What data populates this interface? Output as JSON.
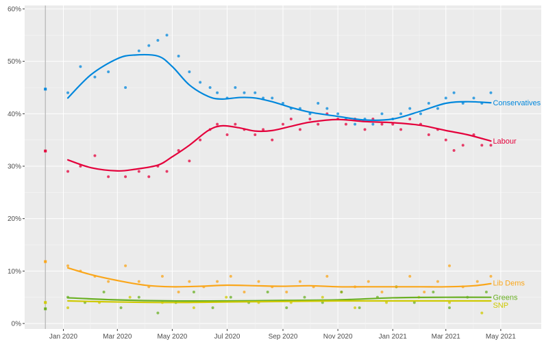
{
  "chart_data": {
    "type": "scatter",
    "x_ticks": [
      "Jan 2020",
      "Mar 2020",
      "May 2020",
      "Jul 2020",
      "Sep 2020",
      "Nov 2020",
      "Jan 2021",
      "Mar 2021",
      "May 2021"
    ],
    "y_ticks": [
      "0%",
      "10%",
      "20%",
      "30%",
      "40%",
      "50%",
      "60%"
    ],
    "ylim": [
      0,
      60
    ],
    "xlim": [
      "2019-11-19",
      "2021-06-15"
    ],
    "grid": true,
    "legend": "direct labels at right end of lines",
    "election_marker": {
      "date": "2019-12-12",
      "results": {
        "Conservatives": 44.7,
        "Labour": 32.9,
        "Lib Dems": 11.8,
        "Greens": 2.8,
        "SNP": 4.0
      }
    },
    "series": [
      {
        "name": "Conservatives",
        "color": "#0087dc",
        "trend_dates": [
          "2020-01-06",
          "2020-02-01",
          "2020-03-01",
          "2020-03-20",
          "2020-04-15",
          "2020-05-01",
          "2020-05-20",
          "2020-06-10",
          "2020-06-25",
          "2020-07-15",
          "2020-08-01",
          "2020-08-20",
          "2020-09-10",
          "2020-10-01",
          "2020-11-01",
          "2020-12-01",
          "2021-01-01",
          "2021-02-01",
          "2021-03-01",
          "2021-03-25",
          "2021-04-20"
        ],
        "trend_values": [
          43.0,
          47.5,
          50.5,
          51.2,
          51.0,
          49.0,
          45.5,
          43.3,
          42.8,
          43.1,
          43.0,
          42.3,
          41.2,
          40.3,
          39.5,
          38.8,
          39.0,
          40.5,
          42.0,
          42.3,
          42.1
        ],
        "poll_dates": [
          "2020-01-06",
          "2020-01-20",
          "2020-02-05",
          "2020-02-20",
          "2020-03-10",
          "2020-03-25",
          "2020-04-05",
          "2020-04-15",
          "2020-04-25",
          "2020-05-08",
          "2020-05-20",
          "2020-06-01",
          "2020-06-12",
          "2020-06-20",
          "2020-07-01",
          "2020-07-10",
          "2020-07-20",
          "2020-08-01",
          "2020-08-10",
          "2020-08-20",
          "2020-09-01",
          "2020-09-10",
          "2020-09-20",
          "2020-10-01",
          "2020-10-10",
          "2020-10-20",
          "2020-11-01",
          "2020-11-10",
          "2020-11-20",
          "2020-12-01",
          "2020-12-10",
          "2020-12-20",
          "2021-01-01",
          "2021-01-10",
          "2021-01-20",
          "2021-02-01",
          "2021-02-10",
          "2021-02-20",
          "2021-03-01",
          "2021-03-10",
          "2021-03-20",
          "2021-04-01",
          "2021-04-10",
          "2021-04-20"
        ],
        "poll_values": [
          44,
          49,
          47,
          48,
          45,
          52,
          53,
          54,
          55,
          51,
          48,
          46,
          45,
          44,
          43,
          45,
          44,
          44,
          43,
          43,
          42,
          41,
          41,
          40,
          42,
          41,
          40,
          39,
          38,
          39,
          38,
          40,
          39,
          40,
          41,
          40,
          42,
          41,
          43,
          44,
          42,
          43,
          42,
          44
        ]
      },
      {
        "name": "Labour",
        "color": "#e4003b",
        "trend_dates": [
          "2020-01-06",
          "2020-02-01",
          "2020-03-01",
          "2020-03-20",
          "2020-04-15",
          "2020-05-01",
          "2020-05-20",
          "2020-06-10",
          "2020-06-25",
          "2020-07-15",
          "2020-08-01",
          "2020-08-20",
          "2020-09-10",
          "2020-10-01",
          "2020-11-01",
          "2020-12-01",
          "2021-01-01",
          "2021-02-01",
          "2021-03-01",
          "2021-03-25",
          "2021-04-20"
        ],
        "trend_values": [
          31.2,
          29.7,
          29.1,
          29.4,
          30.2,
          31.8,
          34.0,
          36.8,
          37.7,
          37.3,
          36.7,
          36.8,
          37.6,
          38.4,
          38.9,
          38.5,
          38.3,
          37.8,
          36.8,
          36.0,
          34.8
        ],
        "poll_dates": [
          "2020-01-06",
          "2020-01-20",
          "2020-02-05",
          "2020-02-20",
          "2020-03-10",
          "2020-03-25",
          "2020-04-05",
          "2020-04-15",
          "2020-04-25",
          "2020-05-08",
          "2020-05-20",
          "2020-06-01",
          "2020-06-12",
          "2020-06-20",
          "2020-07-01",
          "2020-07-10",
          "2020-07-20",
          "2020-08-01",
          "2020-08-10",
          "2020-08-20",
          "2020-09-01",
          "2020-09-10",
          "2020-09-20",
          "2020-10-01",
          "2020-10-10",
          "2020-10-20",
          "2020-11-01",
          "2020-11-10",
          "2020-11-20",
          "2020-12-01",
          "2020-12-10",
          "2020-12-20",
          "2021-01-01",
          "2021-01-10",
          "2021-01-20",
          "2021-02-01",
          "2021-02-10",
          "2021-02-20",
          "2021-03-01",
          "2021-03-10",
          "2021-03-20",
          "2021-04-01",
          "2021-04-10",
          "2021-04-20"
        ],
        "poll_values": [
          29,
          30,
          32,
          28,
          28,
          29,
          28,
          30,
          29,
          33,
          31,
          35,
          37,
          38,
          36,
          38,
          37,
          36,
          37,
          35,
          38,
          39,
          37,
          39,
          38,
          40,
          39,
          38,
          39,
          37,
          39,
          38,
          38,
          37,
          39,
          38,
          36,
          37,
          35,
          33,
          34,
          36,
          34,
          34
        ]
      },
      {
        "name": "Lib Dems",
        "color": "#faa61a",
        "trend_dates": [
          "2020-01-06",
          "2020-02-01",
          "2020-03-01",
          "2020-04-01",
          "2020-05-01",
          "2020-06-01",
          "2020-07-01",
          "2020-08-01",
          "2020-09-01",
          "2020-10-01",
          "2020-11-01",
          "2020-12-01",
          "2021-01-01",
          "2021-02-01",
          "2021-03-01",
          "2021-04-01",
          "2021-04-20"
        ],
        "trend_values": [
          10.6,
          9.3,
          8.2,
          7.3,
          7.0,
          7.1,
          7.3,
          7.2,
          7.1,
          7.2,
          7.0,
          7.0,
          7.0,
          7.0,
          7.0,
          7.2,
          7.6
        ],
        "poll_dates": [
          "2020-01-06",
          "2020-01-20",
          "2020-02-05",
          "2020-02-20",
          "2020-03-10",
          "2020-03-25",
          "2020-04-05",
          "2020-04-20",
          "2020-05-08",
          "2020-05-20",
          "2020-06-05",
          "2020-06-20",
          "2020-07-05",
          "2020-07-20",
          "2020-08-05",
          "2020-08-20",
          "2020-09-05",
          "2020-09-20",
          "2020-10-05",
          "2020-10-20",
          "2020-11-05",
          "2020-11-20",
          "2020-12-05",
          "2020-12-20",
          "2021-01-05",
          "2021-01-20",
          "2021-02-05",
          "2021-02-20",
          "2021-03-05",
          "2021-03-20",
          "2021-04-05",
          "2021-04-20"
        ],
        "poll_values": [
          11,
          10,
          9,
          8,
          11,
          8,
          7,
          9,
          6,
          8,
          7,
          8,
          9,
          6,
          8,
          7,
          6,
          8,
          7,
          9,
          6,
          7,
          8,
          6,
          7,
          9,
          6,
          8,
          11,
          7,
          8,
          9
        ]
      },
      {
        "name": "Greens",
        "color": "#6ab023",
        "trend_dates": [
          "2020-01-06",
          "2020-03-01",
          "2020-05-01",
          "2020-07-01",
          "2020-09-01",
          "2020-11-01",
          "2021-01-01",
          "2021-03-01",
          "2021-04-20"
        ],
        "trend_values": [
          4.9,
          4.5,
          4.3,
          4.3,
          4.4,
          4.5,
          4.9,
          5.0,
          5.0
        ],
        "poll_dates": [
          "2020-01-06",
          "2020-01-25",
          "2020-02-15",
          "2020-03-05",
          "2020-03-25",
          "2020-04-15",
          "2020-05-05",
          "2020-05-25",
          "2020-06-15",
          "2020-07-05",
          "2020-07-25",
          "2020-08-15",
          "2020-09-05",
          "2020-09-25",
          "2020-10-15",
          "2020-11-05",
          "2020-11-25",
          "2020-12-15",
          "2021-01-05",
          "2021-01-25",
          "2021-02-15",
          "2021-03-05",
          "2021-03-25",
          "2021-04-15"
        ],
        "poll_values": [
          5,
          4,
          6,
          3,
          5,
          2,
          4,
          6,
          3,
          5,
          4,
          6,
          3,
          5,
          4,
          6,
          3,
          5,
          7,
          4,
          6,
          3,
          5,
          6
        ]
      },
      {
        "name": "SNP",
        "color": "#cfc900",
        "trend_dates": [
          "2020-01-06",
          "2020-03-01",
          "2020-05-01",
          "2020-07-01",
          "2020-09-01",
          "2020-11-01",
          "2021-01-01",
          "2021-03-01",
          "2021-04-20"
        ],
        "trend_values": [
          4.3,
          4.1,
          4.0,
          4.1,
          4.2,
          4.3,
          4.3,
          4.3,
          4.3
        ],
        "poll_dates": [
          "2020-01-06",
          "2020-02-10",
          "2020-03-15",
          "2020-04-20",
          "2020-05-25",
          "2020-06-30",
          "2020-08-05",
          "2020-09-10",
          "2020-10-15",
          "2020-11-20",
          "2020-12-25",
          "2021-01-30",
          "2021-03-05",
          "2021-04-10"
        ],
        "poll_values": [
          3,
          4,
          5,
          4,
          3,
          5,
          4,
          4,
          5,
          3,
          4,
          5,
          4,
          2
        ]
      }
    ]
  }
}
